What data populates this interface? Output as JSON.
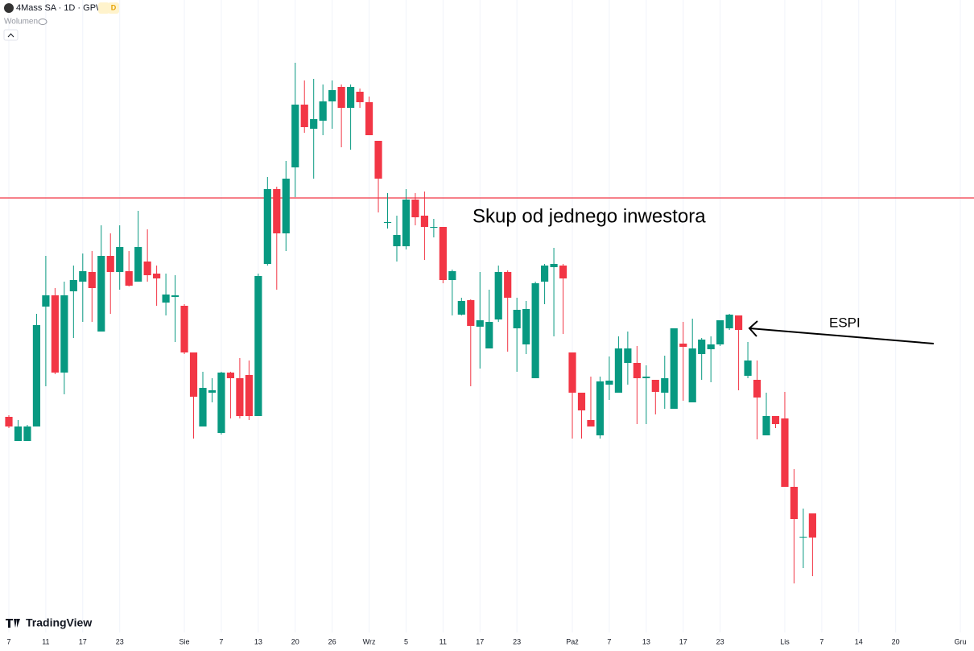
{
  "chart_data": {
    "type": "candlestick",
    "title": "4Mass SA · 1D · GPW",
    "badge": "D",
    "indicator": "Wolumen",
    "watermark": "TradingView",
    "annotations": [
      "Skup od jednego inwestora",
      "ESPI"
    ],
    "up_color": "#089981",
    "down_color": "#f23645",
    "hline": {
      "value": 514,
      "color": "#f23645"
    },
    "grid": true,
    "xlim": [
      0,
      103
    ],
    "ylim": [
      0,
      760
    ],
    "xticks": [
      {
        "value": 0,
        "label": "7"
      },
      {
        "value": 4,
        "label": "11"
      },
      {
        "value": 8,
        "label": "17"
      },
      {
        "value": 12,
        "label": "23"
      },
      {
        "value": 19,
        "label": "Sie"
      },
      {
        "value": 23,
        "label": "7"
      },
      {
        "value": 27,
        "label": "13"
      },
      {
        "value": 31,
        "label": "20"
      },
      {
        "value": 35,
        "label": "26"
      },
      {
        "value": 39,
        "label": "Wrz"
      },
      {
        "value": 43,
        "label": "5"
      },
      {
        "value": 47,
        "label": "11"
      },
      {
        "value": 51,
        "label": "17"
      },
      {
        "value": 55,
        "label": "23"
      },
      {
        "value": 61,
        "label": "Paź"
      },
      {
        "value": 65,
        "label": "7"
      },
      {
        "value": 69,
        "label": "13"
      },
      {
        "value": 73,
        "label": "17"
      },
      {
        "value": 77,
        "label": "23"
      },
      {
        "value": 84,
        "label": "Lis"
      },
      {
        "value": 88,
        "label": "7"
      },
      {
        "value": 92,
        "label": "14"
      },
      {
        "value": 96,
        "label": "20"
      },
      {
        "value": 103,
        "label": "Gru"
      }
    ],
    "open": [
      242,
      212,
      212,
      230,
      379,
      393,
      297,
      398,
      410,
      422,
      348,
      442,
      422,
      423,
      410,
      435,
      420,
      384,
      391,
      380,
      322,
      230,
      272,
      222,
      297,
      290,
      294,
      243,
      432,
      525,
      470,
      552,
      630,
      600,
      610,
      634,
      652,
      626,
      646,
      633,
      585,
      483,
      454,
      454,
      512,
      492,
      477,
      478,
      412,
      369,
      387,
      354,
      327,
      363,
      422,
      352,
      332,
      290,
      410,
      428,
      430,
      322,
      272,
      238,
      219,
      282,
      272,
      309,
      309,
      290,
      288,
      272,
      252,
      333,
      260,
      320,
      326,
      332,
      352,
      368,
      293,
      288,
      219,
      243,
      240,
      155,
      92,
      122
    ],
    "high": [
      244,
      238,
      232,
      370,
      442,
      402,
      410,
      430,
      445,
      448,
      480,
      470,
      480,
      448,
      498,
      475,
      430,
      420,
      418,
      382,
      322,
      298,
      290,
      298,
      298,
      315,
      312,
      420,
      540,
      528,
      560,
      682,
      660,
      662,
      655,
      660,
      655,
      655,
      650,
      640,
      585,
      520,
      492,
      525,
      520,
      522,
      488,
      478,
      425,
      390,
      388,
      422,
      400,
      430,
      424,
      390,
      386,
      410,
      432,
      452,
      432,
      322,
      272,
      292,
      292,
      317,
      342,
      348,
      330,
      306,
      288,
      318,
      352,
      360,
      364,
      340,
      342,
      362,
      370,
      368,
      335,
      312,
      272,
      243,
      273,
      177,
      128,
      122
    ],
    "low": [
      228,
      212,
      212,
      230,
      280,
      295,
      270,
      340,
      360,
      360,
      348,
      370,
      400,
      404,
      410,
      410,
      380,
      368,
      335,
      320,
      215,
      230,
      260,
      220,
      240,
      240,
      238,
      243,
      430,
      400,
      448,
      515,
      595,
      538,
      592,
      600,
      577,
      574,
      626,
      592,
      496,
      476,
      435,
      450,
      480,
      437,
      465,
      408,
      368,
      368,
      280,
      302,
      327,
      360,
      323,
      298,
      320,
      290,
      382,
      342,
      345,
      215,
      215,
      230,
      215,
      263,
      272,
      282,
      233,
      233,
      245,
      252,
      252,
      262,
      260,
      288,
      285,
      330,
      350,
      275,
      290,
      214,
      219,
      228,
      155,
      35,
      54,
      44
    ],
    "close": [
      230,
      230,
      230,
      356,
      393,
      297,
      393,
      412,
      423,
      402,
      442,
      422,
      453,
      405,
      453,
      418,
      414,
      394,
      393,
      322,
      267,
      278,
      275,
      297,
      290,
      243,
      243,
      417,
      525,
      470,
      538,
      630,
      602,
      612,
      634,
      648,
      626,
      652,
      633,
      592,
      538,
      484,
      468,
      512,
      490,
      478,
      478,
      412,
      423,
      386,
      355,
      362,
      360,
      422,
      390,
      375,
      376,
      408,
      430,
      432,
      414,
      272,
      250,
      230,
      286,
      287,
      327,
      327,
      290,
      292,
      273,
      290,
      352,
      329,
      327,
      338,
      332,
      362,
      369,
      350,
      312,
      266,
      243,
      233,
      155,
      115,
      93,
      92
    ]
  }
}
